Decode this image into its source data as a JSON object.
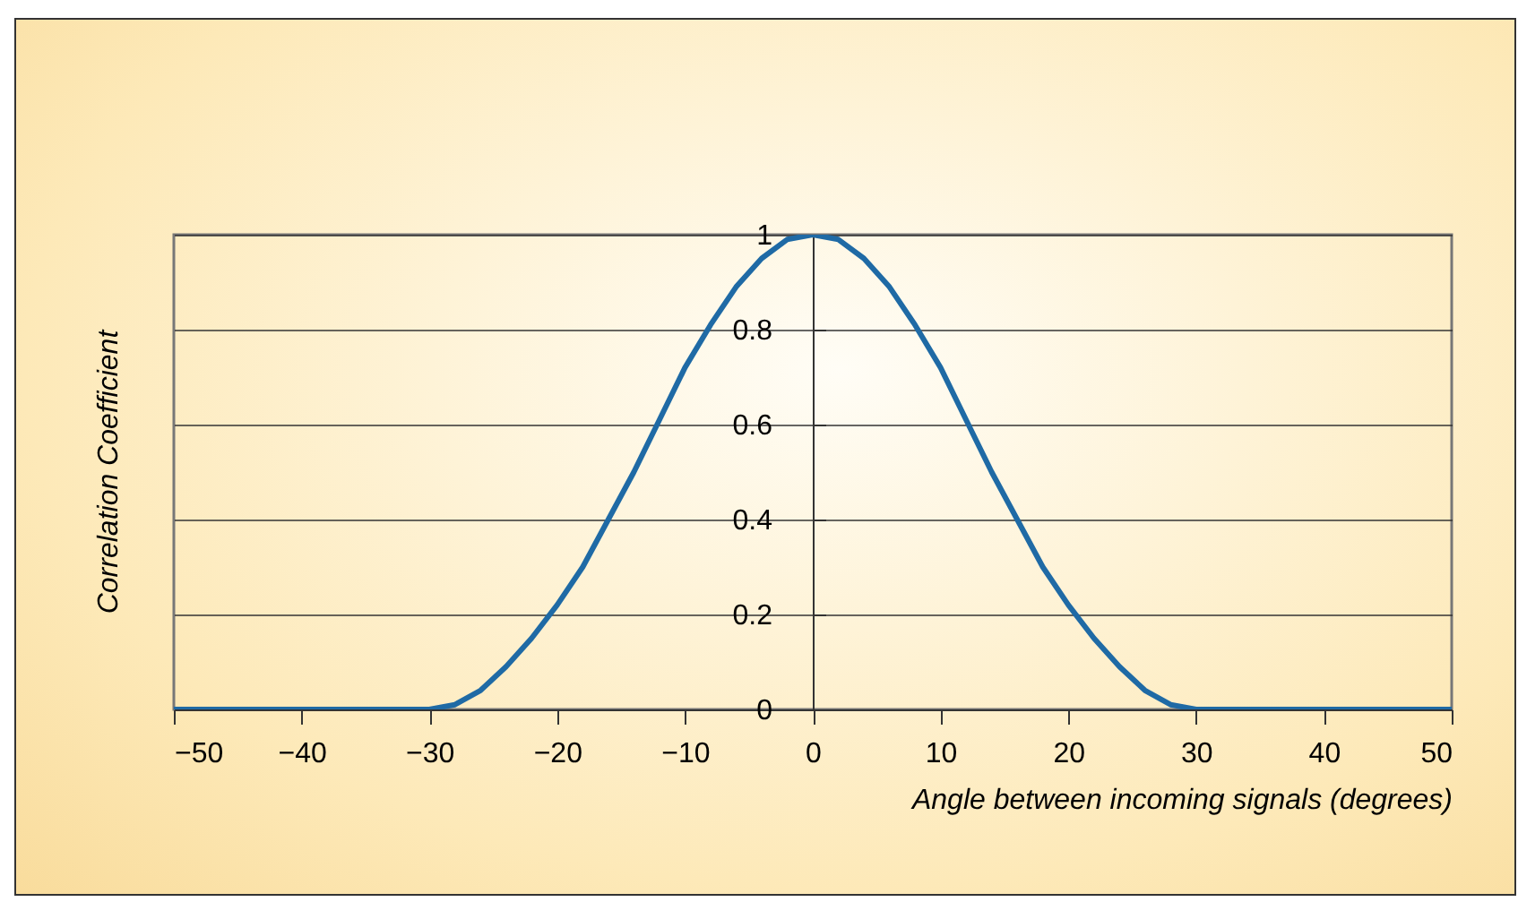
{
  "chart_data": {
    "type": "line",
    "xlabel": "Angle between incoming signals (degrees)",
    "ylabel": "Correlation Coefficient",
    "x": [
      -50,
      -40,
      -30,
      -28,
      -26,
      -24,
      -22,
      -20,
      -18,
      -16,
      -14,
      -12,
      -10,
      -8,
      -6,
      -4,
      -2,
      0,
      2,
      4,
      6,
      8,
      10,
      12,
      14,
      16,
      18,
      20,
      22,
      24,
      26,
      28,
      30,
      40,
      50
    ],
    "series": [
      {
        "color": "#1f6aa5",
        "values": [
          0,
          0,
          0,
          0.01,
          0.04,
          0.09,
          0.15,
          0.22,
          0.3,
          0.4,
          0.5,
          0.61,
          0.72,
          0.81,
          0.89,
          0.95,
          0.99,
          1,
          0.99,
          0.95,
          0.89,
          0.81,
          0.72,
          0.61,
          0.5,
          0.4,
          0.3,
          0.22,
          0.15,
          0.09,
          0.04,
          0.01,
          0,
          0,
          0
        ]
      }
    ],
    "xlim": [
      -50,
      50
    ],
    "xticks": [
      -50,
      -40,
      -30,
      -20,
      -10,
      0,
      10,
      20,
      30,
      40,
      50
    ],
    "ylim": [
      0,
      1
    ],
    "yticks": [
      {
        "value": 0,
        "label": "0"
      },
      0.2,
      0.4,
      0.6,
      0.8,
      {
        "value": 1,
        "label": "1"
      }
    ],
    "grid": "y",
    "marker": "none",
    "line_style": "solid"
  }
}
